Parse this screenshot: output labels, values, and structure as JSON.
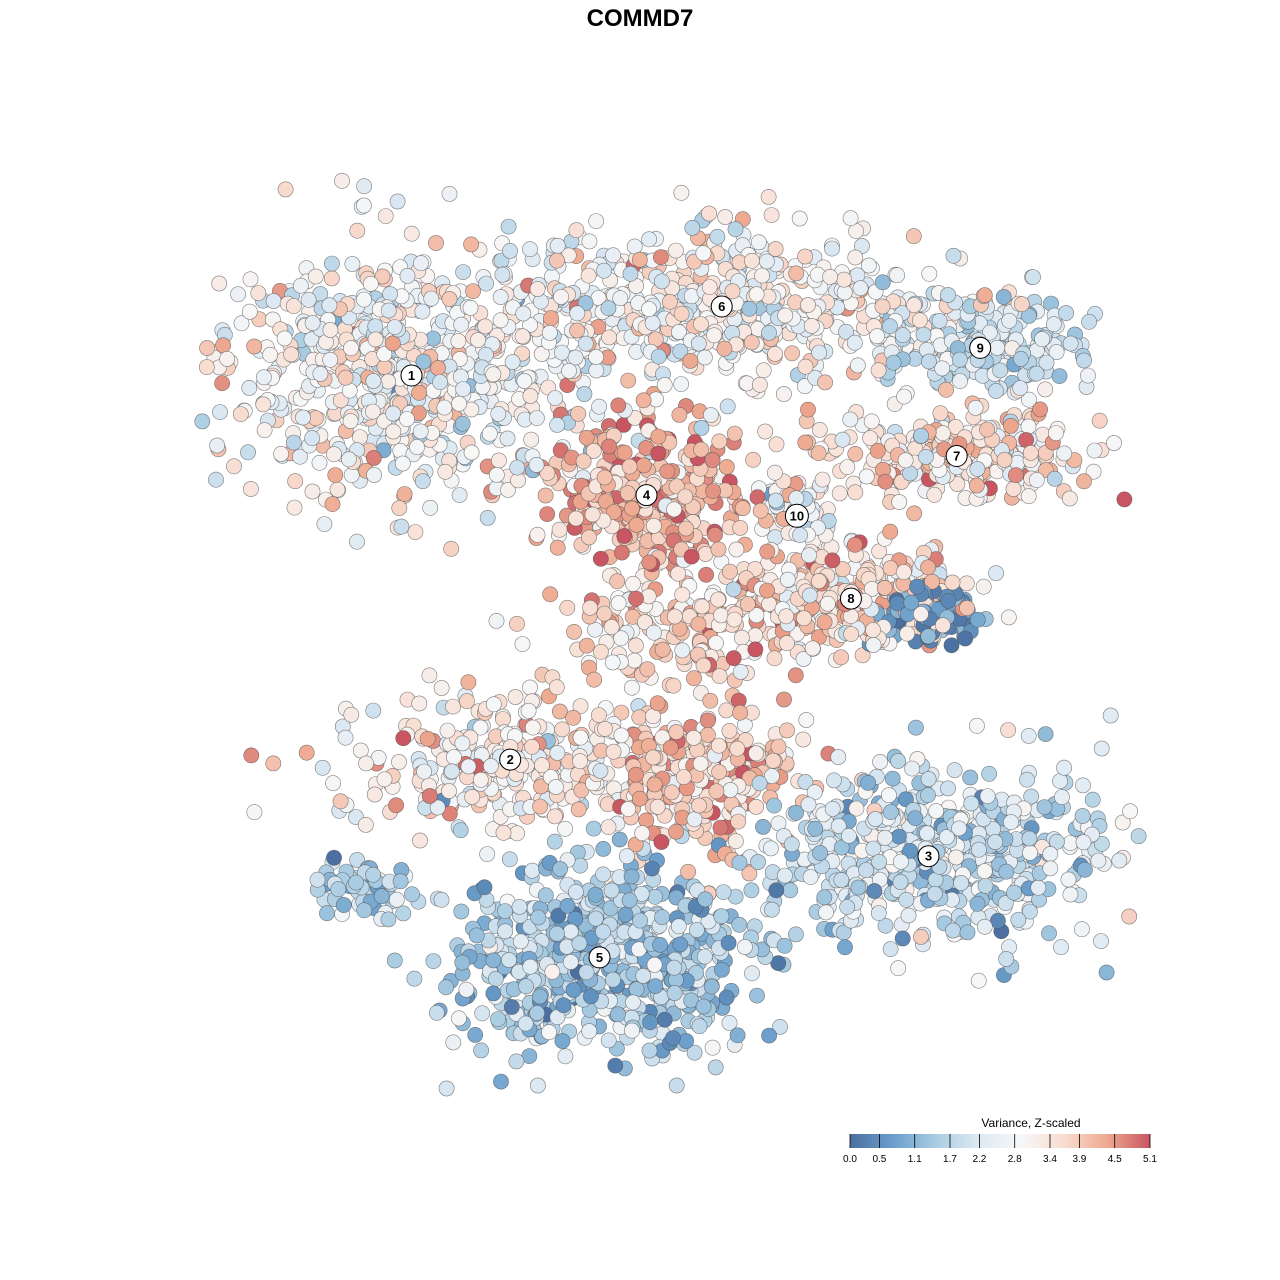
{
  "chart_data": {
    "type": "scatter",
    "title": "COMMD7",
    "xlabel": "",
    "ylabel": "",
    "grid": false,
    "axes_visible": false,
    "xlim": [
      -100,
      100
    ],
    "ylim": [
      -100,
      100
    ],
    "point_stroke_color": "#555555",
    "clusters": [
      {
        "label": "1",
        "x": -55,
        "y": 57.5,
        "spread": [
          22,
          14
        ],
        "n": 700,
        "mean_value": 2.9,
        "value_sd": 0.75
      },
      {
        "label": "2",
        "x": -34,
        "y": -26,
        "spread": [
          18,
          7
        ],
        "n": 300,
        "mean_value": 3.2,
        "value_sd": 0.7
      },
      {
        "label": "3",
        "x": 55,
        "y": -47,
        "spread": [
          20,
          10
        ],
        "n": 550,
        "mean_value": 2.0,
        "value_sd": 0.7
      },
      {
        "label": "4",
        "x": -5,
        "y": 31.5,
        "spread": [
          10,
          8
        ],
        "n": 350,
        "mean_value": 4.2,
        "value_sd": 0.6
      },
      {
        "label": "5",
        "x": -15,
        "y": -69,
        "spread": [
          16,
          10
        ],
        "n": 650,
        "mean_value": 1.6,
        "value_sd": 0.6
      },
      {
        "label": "6",
        "x": 11,
        "y": 72.5,
        "spread": [
          24,
          8
        ],
        "n": 550,
        "mean_value": 3.0,
        "value_sd": 0.7
      },
      {
        "label": "7",
        "x": 61,
        "y": 40,
        "spread": [
          16,
          5
        ],
        "n": 250,
        "mean_value": 3.4,
        "value_sd": 0.7
      },
      {
        "label": "8",
        "x": 38.5,
        "y": 9,
        "spread": [
          12,
          6
        ],
        "n": 300,
        "mean_value": 3.6,
        "value_sd": 0.7
      },
      {
        "label": "9",
        "x": 66,
        "y": 63.5,
        "spread": [
          10,
          6
        ],
        "n": 200,
        "mean_value": 2.0,
        "value_sd": 0.5
      },
      {
        "label": "10",
        "x": 27,
        "y": 27,
        "spread": [
          4,
          4
        ],
        "n": 60,
        "mean_value": 2.6,
        "value_sd": 0.7
      }
    ],
    "extra_groups": [
      {
        "x": 4,
        "y": 2,
        "spread": [
          14,
          7
        ],
        "n": 180,
        "mean_value": 3.6,
        "value_sd": 0.6
      },
      {
        "x": 5,
        "y": -30,
        "spread": [
          12,
          8
        ],
        "n": 250,
        "mean_value": 3.8,
        "value_sd": 0.6
      },
      {
        "x": 55,
        "y": 6,
        "spread": [
          5,
          3
        ],
        "n": 110,
        "mean_value": 0.7,
        "value_sd": 0.4
      },
      {
        "x": -65,
        "y": -54,
        "spread": [
          6,
          3
        ],
        "n": 60,
        "mean_value": 1.5,
        "value_sd": 0.6
      }
    ],
    "color_scale": {
      "title": "Variance, Z-scaled",
      "min": 0.0,
      "max": 5.1,
      "ticks": [
        "0.0",
        "0.5",
        "1.1",
        "1.7",
        "2.2",
        "2.8",
        "3.4",
        "3.9",
        "4.5",
        "5.1"
      ],
      "stops": [
        "#4a6fa0",
        "#6a9ecb",
        "#a9cce2",
        "#dde9f3",
        "#f7f7f7",
        "#f8dcd0",
        "#eea98f",
        "#c85561"
      ]
    }
  }
}
